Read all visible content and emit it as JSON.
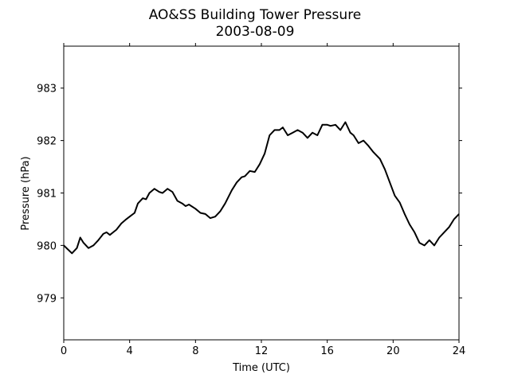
{
  "chart_data": {
    "type": "line",
    "title": "AO&SS Building Tower Pressure",
    "subtitle": "2003-08-09",
    "xlabel": "Time (UTC)",
    "ylabel": "Pressure (hPa)",
    "xlim": [
      0,
      24
    ],
    "ylim": [
      978.2,
      983.8
    ],
    "xticks": [
      0,
      4,
      8,
      12,
      16,
      20,
      24
    ],
    "xtick_labels": [
      "0",
      "4",
      "8",
      "12",
      "16",
      "20",
      "24"
    ],
    "yticks": [
      979,
      980,
      981,
      982,
      983
    ],
    "ytick_labels": [
      "979",
      "980",
      "981",
      "982",
      "983"
    ],
    "grid": false,
    "legend": "none",
    "series": [
      {
        "color": "#000000",
        "x": [
          0,
          0.5,
          0.8,
          1.0,
          1.2,
          1.5,
          1.8,
          2.1,
          2.4,
          2.6,
          2.8,
          3.0,
          3.2,
          3.5,
          3.8,
          4.0,
          4.3,
          4.5,
          4.8,
          5.0,
          5.2,
          5.5,
          5.8,
          6.0,
          6.3,
          6.6,
          6.9,
          7.2,
          7.4,
          7.6,
          8.0,
          8.3,
          8.6,
          8.9,
          9.2,
          9.5,
          9.8,
          10.2,
          10.5,
          10.8,
          11.0,
          11.3,
          11.6,
          11.9,
          12.2,
          12.5,
          12.8,
          13.1,
          13.3,
          13.6,
          13.9,
          14.2,
          14.5,
          14.8,
          15.1,
          15.4,
          15.7,
          16.0,
          16.2,
          16.5,
          16.8,
          17.1,
          17.4,
          17.6,
          17.9,
          18.2,
          18.5,
          18.8,
          19.2,
          19.5,
          19.8,
          20.1,
          20.4,
          20.7,
          21.0,
          21.3,
          21.6,
          21.9,
          22.2,
          22.5,
          22.8,
          23.1,
          23.4,
          23.7,
          24.0
        ],
        "y": [
          980.0,
          979.85,
          979.95,
          980.15,
          980.05,
          979.95,
          980.0,
          980.1,
          980.22,
          980.25,
          980.2,
          980.25,
          980.3,
          980.42,
          980.5,
          980.55,
          980.62,
          980.8,
          980.9,
          980.88,
          981.0,
          981.08,
          981.02,
          981.0,
          981.08,
          981.02,
          980.85,
          980.8,
          980.75,
          980.78,
          980.7,
          980.62,
          980.6,
          980.52,
          980.55,
          980.65,
          980.8,
          981.05,
          981.2,
          981.3,
          981.32,
          981.42,
          981.4,
          981.55,
          981.75,
          982.1,
          982.2,
          982.2,
          982.25,
          982.1,
          982.15,
          982.2,
          982.15,
          982.05,
          982.15,
          982.1,
          982.3,
          982.3,
          982.28,
          982.3,
          982.2,
          982.35,
          982.15,
          982.1,
          981.95,
          982.0,
          981.9,
          981.78,
          981.65,
          981.45,
          981.2,
          980.95,
          980.82,
          980.6,
          980.4,
          980.25,
          980.05,
          980.0,
          980.1,
          980.0,
          980.15,
          980.25,
          980.35,
          980.5,
          980.6
        ]
      }
    ]
  }
}
